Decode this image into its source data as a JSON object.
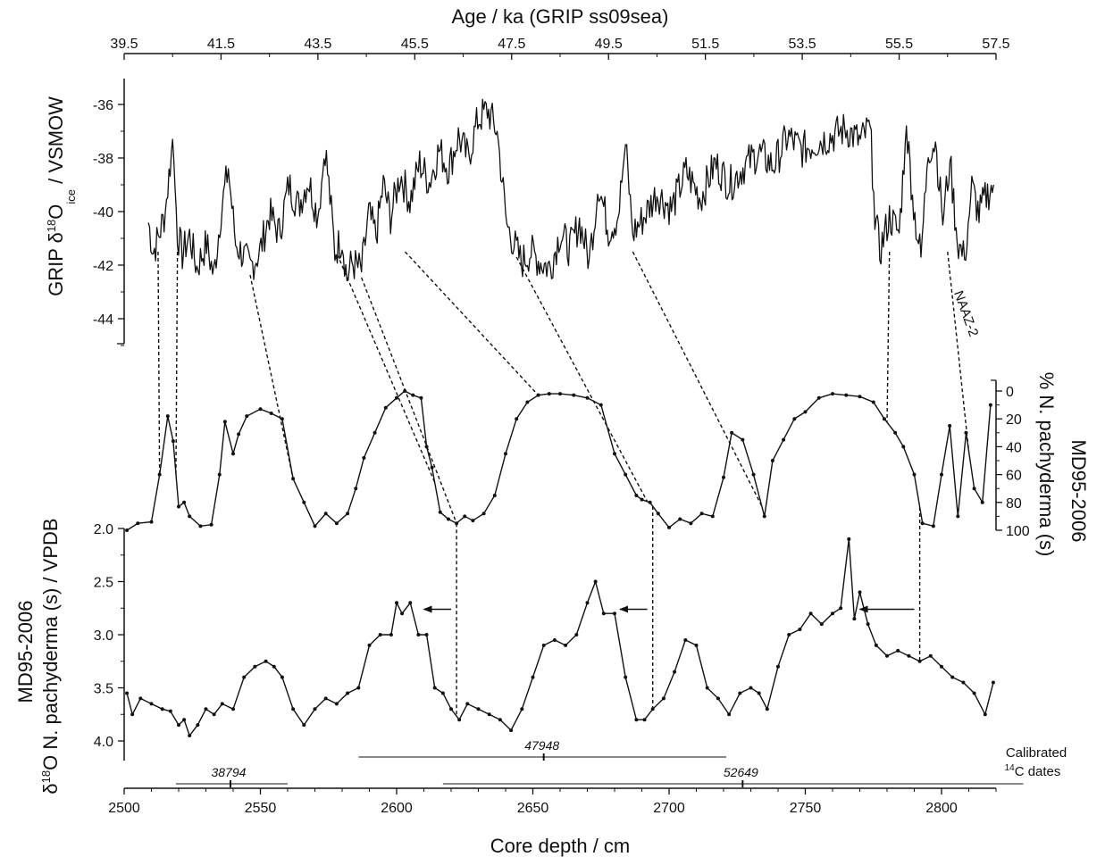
{
  "chart_data": {
    "type": "line",
    "title": "",
    "top_axis": {
      "label": "Age / ka (GRIP ss09sea)",
      "range": [
        39.5,
        57.5
      ],
      "ticks": [
        "39.5",
        "41.5",
        "43.5",
        "45.5",
        "47.5",
        "49.5",
        "51.5",
        "53.5",
        "55.5",
        "57.5"
      ]
    },
    "bottom_axis": {
      "label": "Core depth / cm",
      "range": [
        2500,
        2820
      ],
      "ticks": [
        "2500",
        "2550",
        "2600",
        "2650",
        "2700",
        "2750",
        "2800"
      ]
    },
    "panels": [
      {
        "name": "grip",
        "label_main": "GRIP δ",
        "label_sup": "18",
        "label_mid": "O",
        "label_sub": "ice",
        "label_tail": " / VSMOW",
        "x_axis": "top",
        "y_range": [
          -45,
          -35
        ],
        "ticks": [
          "-36",
          "-38",
          "-40",
          "-42",
          "-44"
        ],
        "annotation": "NAAZ-2",
        "series": [
          {
            "x": [
              40.0,
              40.1,
              40.2,
              40.35,
              40.5,
              40.6,
              40.7,
              40.85,
              41.0,
              41.2,
              41.35,
              41.5,
              41.65,
              41.8,
              41.95,
              42.1,
              42.3,
              42.5,
              42.7,
              42.9,
              43.1,
              43.3,
              43.5,
              43.65,
              43.75,
              43.85,
              44.0,
              44.1,
              44.2,
              44.4,
              44.55,
              44.7,
              44.85,
              45.0,
              45.2,
              45.4,
              45.6,
              45.8,
              46.0,
              46.2,
              46.4,
              46.6,
              46.8,
              47.0,
              47.2,
              47.4,
              47.55,
              47.7,
              47.9,
              48.1,
              48.3,
              48.5,
              48.7,
              48.9,
              49.1,
              49.3,
              49.5,
              49.7,
              49.85,
              50.0,
              50.2,
              50.5,
              50.8,
              51.1,
              51.4,
              51.7,
              52.0,
              52.3,
              52.6,
              52.9,
              53.2,
              53.5,
              53.8,
              54.1,
              54.4,
              54.7,
              54.9,
              55.0,
              55.1,
              55.3,
              55.5,
              55.65,
              55.8,
              55.95,
              56.1,
              56.25,
              56.4,
              56.55,
              56.7,
              56.85,
              57.0,
              57.15,
              57.3,
              57.45
            ],
            "y": [
              -40.4,
              -41.5,
              -41.0,
              -40.0,
              -37.3,
              -40.8,
              -41.6,
              -40.9,
              -42.1,
              -41.2,
              -42.4,
              -40.0,
              -38.4,
              -41.2,
              -41.6,
              -42.1,
              -41.5,
              -40.1,
              -40.8,
              -39.0,
              -39.8,
              -38.8,
              -40.2,
              -37.6,
              -39.5,
              -41.5,
              -41.0,
              -42.5,
              -41.9,
              -42.2,
              -40.1,
              -40.9,
              -39.0,
              -40.2,
              -38.6,
              -39.6,
              -38.2,
              -38.9,
              -37.7,
              -38.4,
              -37.2,
              -38.0,
              -36.6,
              -36.2,
              -37.0,
              -40.5,
              -41.2,
              -41.9,
              -41.5,
              -41.9,
              -42.1,
              -40.8,
              -41.4,
              -40.4,
              -41.8,
              -39.0,
              -40.7,
              -40.2,
              -37.5,
              -40.8,
              -40.3,
              -39.3,
              -39.9,
              -38.5,
              -39.5,
              -38.2,
              -39.0,
              -38.3,
              -37.8,
              -38.3,
              -37.2,
              -37.7,
              -37.4,
              -37.2,
              -36.9,
              -37.4,
              -36.8,
              -40.1,
              -41.5,
              -40.2,
              -40.8,
              -36.8,
              -39.9,
              -41.7,
              -37.7,
              -37.4,
              -40.3,
              -38.1,
              -41.1,
              -41.8,
              -39.1,
              -40.1,
              -39.4,
              -39.0
            ]
          }
        ]
      },
      {
        "name": "npachy-percent",
        "label_line1": "MD95-2006",
        "label_line2": "% N. pachyderma (s)",
        "x_axis": "bottom",
        "y_range": [
          0,
          100
        ],
        "y_reversed": true,
        "ticks": [
          "0",
          "20",
          "40",
          "60",
          "80",
          "100"
        ],
        "series": [
          {
            "x": [
              2501,
              2505,
              2510,
              2513,
              2516,
              2518,
              2520,
              2522,
              2524,
              2528,
              2532,
              2535,
              2537,
              2540,
              2542,
              2545,
              2550,
              2554,
              2558,
              2562,
              2566,
              2570,
              2574,
              2578,
              2582,
              2585,
              2588,
              2592,
              2596,
              2600,
              2603,
              2606,
              2609,
              2611,
              2613,
              2616,
              2619,
              2622,
              2625,
              2628,
              2632,
              2636,
              2640,
              2644,
              2648,
              2652,
              2656,
              2660,
              2665,
              2670,
              2675,
              2680,
              2684,
              2688,
              2690,
              2693,
              2696,
              2700,
              2704,
              2708,
              2712,
              2716,
              2720,
              2723,
              2727,
              2731,
              2735,
              2738,
              2742,
              2746,
              2750,
              2755,
              2760,
              2765,
              2770,
              2775,
              2779,
              2783,
              2786,
              2790,
              2793,
              2797,
              2800,
              2803,
              2806,
              2809,
              2812,
              2815,
              2818
            ],
            "y": [
              100,
              95,
              94,
              60,
              18,
              36,
              83,
              80,
              90,
              97,
              96,
              60,
              22,
              45,
              31,
              18,
              13,
              16,
              20,
              63,
              80,
              97,
              88,
              95,
              88,
              70,
              48,
              30,
              12,
              5,
              0,
              3,
              5,
              40,
              55,
              87,
              92,
              95,
              90,
              93,
              88,
              75,
              45,
              20,
              8,
              3,
              2,
              2,
              3,
              5,
              10,
              45,
              60,
              75,
              78,
              80,
              88,
              98,
              92,
              95,
              88,
              90,
              62,
              30,
              35,
              60,
              90,
              50,
              35,
              20,
              15,
              5,
              2,
              3,
              4,
              8,
              20,
              30,
              40,
              60,
              95,
              97,
              60,
              25,
              90,
              30,
              70,
              80,
              10
            ]
          }
        ]
      },
      {
        "name": "d18o-npachy",
        "label_line1": "MD95-2006",
        "label_main": "δ",
        "label_sup": "18",
        "label_rest": "O N. pachyderma (s) / VPDB",
        "x_axis": "bottom",
        "y_range": [
          2.0,
          4.2
        ],
        "y_reversed": true,
        "ticks": [
          "2.0",
          "2.5",
          "3.0",
          "3.5",
          "4.0"
        ],
        "series": [
          {
            "x": [
              2501,
              2503,
              2506,
              2510,
              2514,
              2517,
              2520,
              2522,
              2524,
              2527,
              2530,
              2533,
              2536,
              2540,
              2544,
              2548,
              2552,
              2555,
              2558,
              2562,
              2566,
              2570,
              2574,
              2578,
              2582,
              2586,
              2590,
              2594,
              2598,
              2600,
              2602,
              2605,
              2608,
              2611,
              2614,
              2617,
              2620,
              2623,
              2626,
              2630,
              2634,
              2638,
              2642,
              2646,
              2650,
              2654,
              2658,
              2662,
              2666,
              2670,
              2673,
              2676,
              2680,
              2684,
              2688,
              2691,
              2694,
              2698,
              2702,
              2706,
              2710,
              2714,
              2718,
              2722,
              2726,
              2730,
              2733,
              2736,
              2740,
              2744,
              2748,
              2752,
              2756,
              2760,
              2763,
              2766,
              2768,
              2770,
              2773,
              2776,
              2780,
              2784,
              2788,
              2792,
              2796,
              2800,
              2804,
              2808,
              2812,
              2816,
              2819
            ],
            "y": [
              3.55,
              3.75,
              3.6,
              3.65,
              3.7,
              3.72,
              3.85,
              3.8,
              3.95,
              3.85,
              3.7,
              3.75,
              3.65,
              3.7,
              3.4,
              3.3,
              3.25,
              3.3,
              3.4,
              3.7,
              3.85,
              3.7,
              3.6,
              3.65,
              3.55,
              3.5,
              3.1,
              3.0,
              3.0,
              2.7,
              2.8,
              2.7,
              3.0,
              3.0,
              3.5,
              3.55,
              3.7,
              3.8,
              3.65,
              3.7,
              3.75,
              3.8,
              3.9,
              3.7,
              3.4,
              3.1,
              3.05,
              3.1,
              3.0,
              2.7,
              2.5,
              2.8,
              2.8,
              3.4,
              3.8,
              3.8,
              3.7,
              3.6,
              3.35,
              3.05,
              3.1,
              3.5,
              3.6,
              3.75,
              3.55,
              3.5,
              3.55,
              3.7,
              3.3,
              3.0,
              2.95,
              2.8,
              2.9,
              2.8,
              2.75,
              2.1,
              2.85,
              2.6,
              2.9,
              3.1,
              3.2,
              3.15,
              3.2,
              3.25,
              3.2,
              3.3,
              3.4,
              3.45,
              3.55,
              3.75,
              3.45
            ]
          }
        ]
      }
    ],
    "tie_lines_upper": [
      {
        "age": 40.2,
        "depth": 2513
      },
      {
        "age": 40.6,
        "depth": 2519
      },
      {
        "age": 42.1,
        "depth": 2562
      },
      {
        "age": 43.9,
        "depth": 2614
      },
      {
        "age": 44.4,
        "depth": 2622
      },
      {
        "age": 45.3,
        "depth": 2652
      },
      {
        "age": 47.6,
        "depth": 2692
      },
      {
        "age": 50.0,
        "depth": 2734
      },
      {
        "age": 55.3,
        "depth": 2780
      },
      {
        "age": 56.5,
        "depth": 2810
      }
    ],
    "tie_lines_lower": [
      2622,
      2694,
      2792
    ],
    "arrows": [
      {
        "depth_from": 2620,
        "depth_to": 2610,
        "d18o": 2.76
      },
      {
        "depth_from": 2692,
        "depth_to": 2682,
        "d18o": 2.76
      },
      {
        "depth_from": 2790,
        "depth_to": 2770,
        "d18o": 2.76
      }
    ],
    "calibrated_dates": {
      "label_line1": "Calibrated",
      "label_sup": "14",
      "label_line2": "C dates",
      "entries": [
        {
          "label": "38794",
          "center": 2539,
          "min": 2519,
          "max": 2560
        },
        {
          "label": "47948",
          "center": 2654,
          "min": 2586,
          "max": 2721
        },
        {
          "label": "52649",
          "center": 2727,
          "min": 2617,
          "max": 2830
        }
      ]
    },
    "grid": false,
    "legend": "none"
  }
}
